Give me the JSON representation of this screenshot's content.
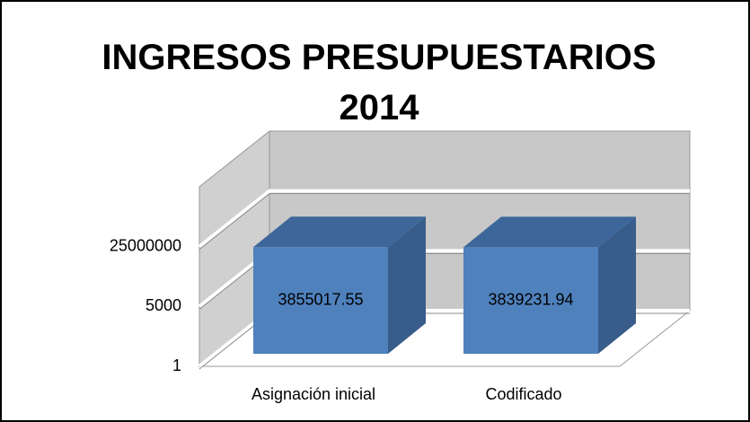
{
  "chart_data": {
    "type": "bar3d",
    "title": "INGRESOS PRESUPUESTARIOS 2014",
    "categories": [
      "Asignación inicial",
      "Codificado"
    ],
    "values": [
      3855017.55,
      3839231.94
    ],
    "color": "#4f81bd",
    "log": true,
    "ylim": [
      1,
      125000000000
    ],
    "yticks": [
      1,
      5000,
      25000000
    ],
    "grid": true
  }
}
